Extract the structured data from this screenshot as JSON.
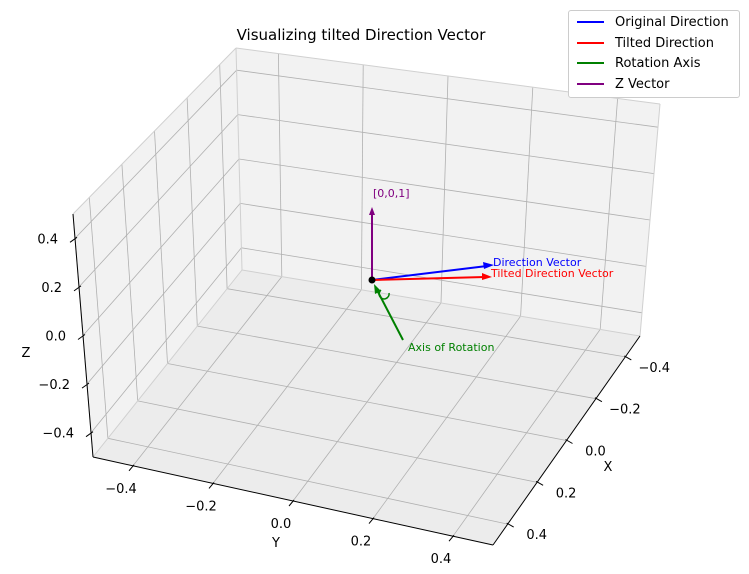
{
  "chart_data": {
    "type": "3d-quiver",
    "title": "Visualizing tilted Direction Vector",
    "xlabel": "X",
    "ylabel": "Y",
    "zlabel": "Z",
    "xlim": [
      -0.5,
      0.5
    ],
    "ylim": [
      -0.5,
      0.5
    ],
    "zlim": [
      -0.5,
      0.5
    ],
    "x_ticks": [
      "−0.4",
      "−0.2",
      "0.0",
      "0.2",
      "0.4"
    ],
    "y_ticks": [
      "−0.4",
      "−0.2",
      "0.0",
      "0.2",
      "0.4"
    ],
    "z_ticks": [
      "−0.4",
      "−0.2",
      "0.0",
      "0.2",
      "0.4"
    ],
    "grid": true,
    "legend_position": "top-right",
    "origin": [
      0,
      0,
      0
    ],
    "series": [
      {
        "name": "Original Direction",
        "color": "#0000ff",
        "annotation": "Direction Vector"
      },
      {
        "name": "Tilted Direction",
        "color": "#ff0000",
        "annotation": "Tilted Direction Vector"
      },
      {
        "name": "Rotation Axis",
        "color": "#008000",
        "annotation": "Axis of Rotation"
      },
      {
        "name": "Z Vector",
        "color": "#800080",
        "annotation": "[0,0,1]"
      }
    ]
  }
}
